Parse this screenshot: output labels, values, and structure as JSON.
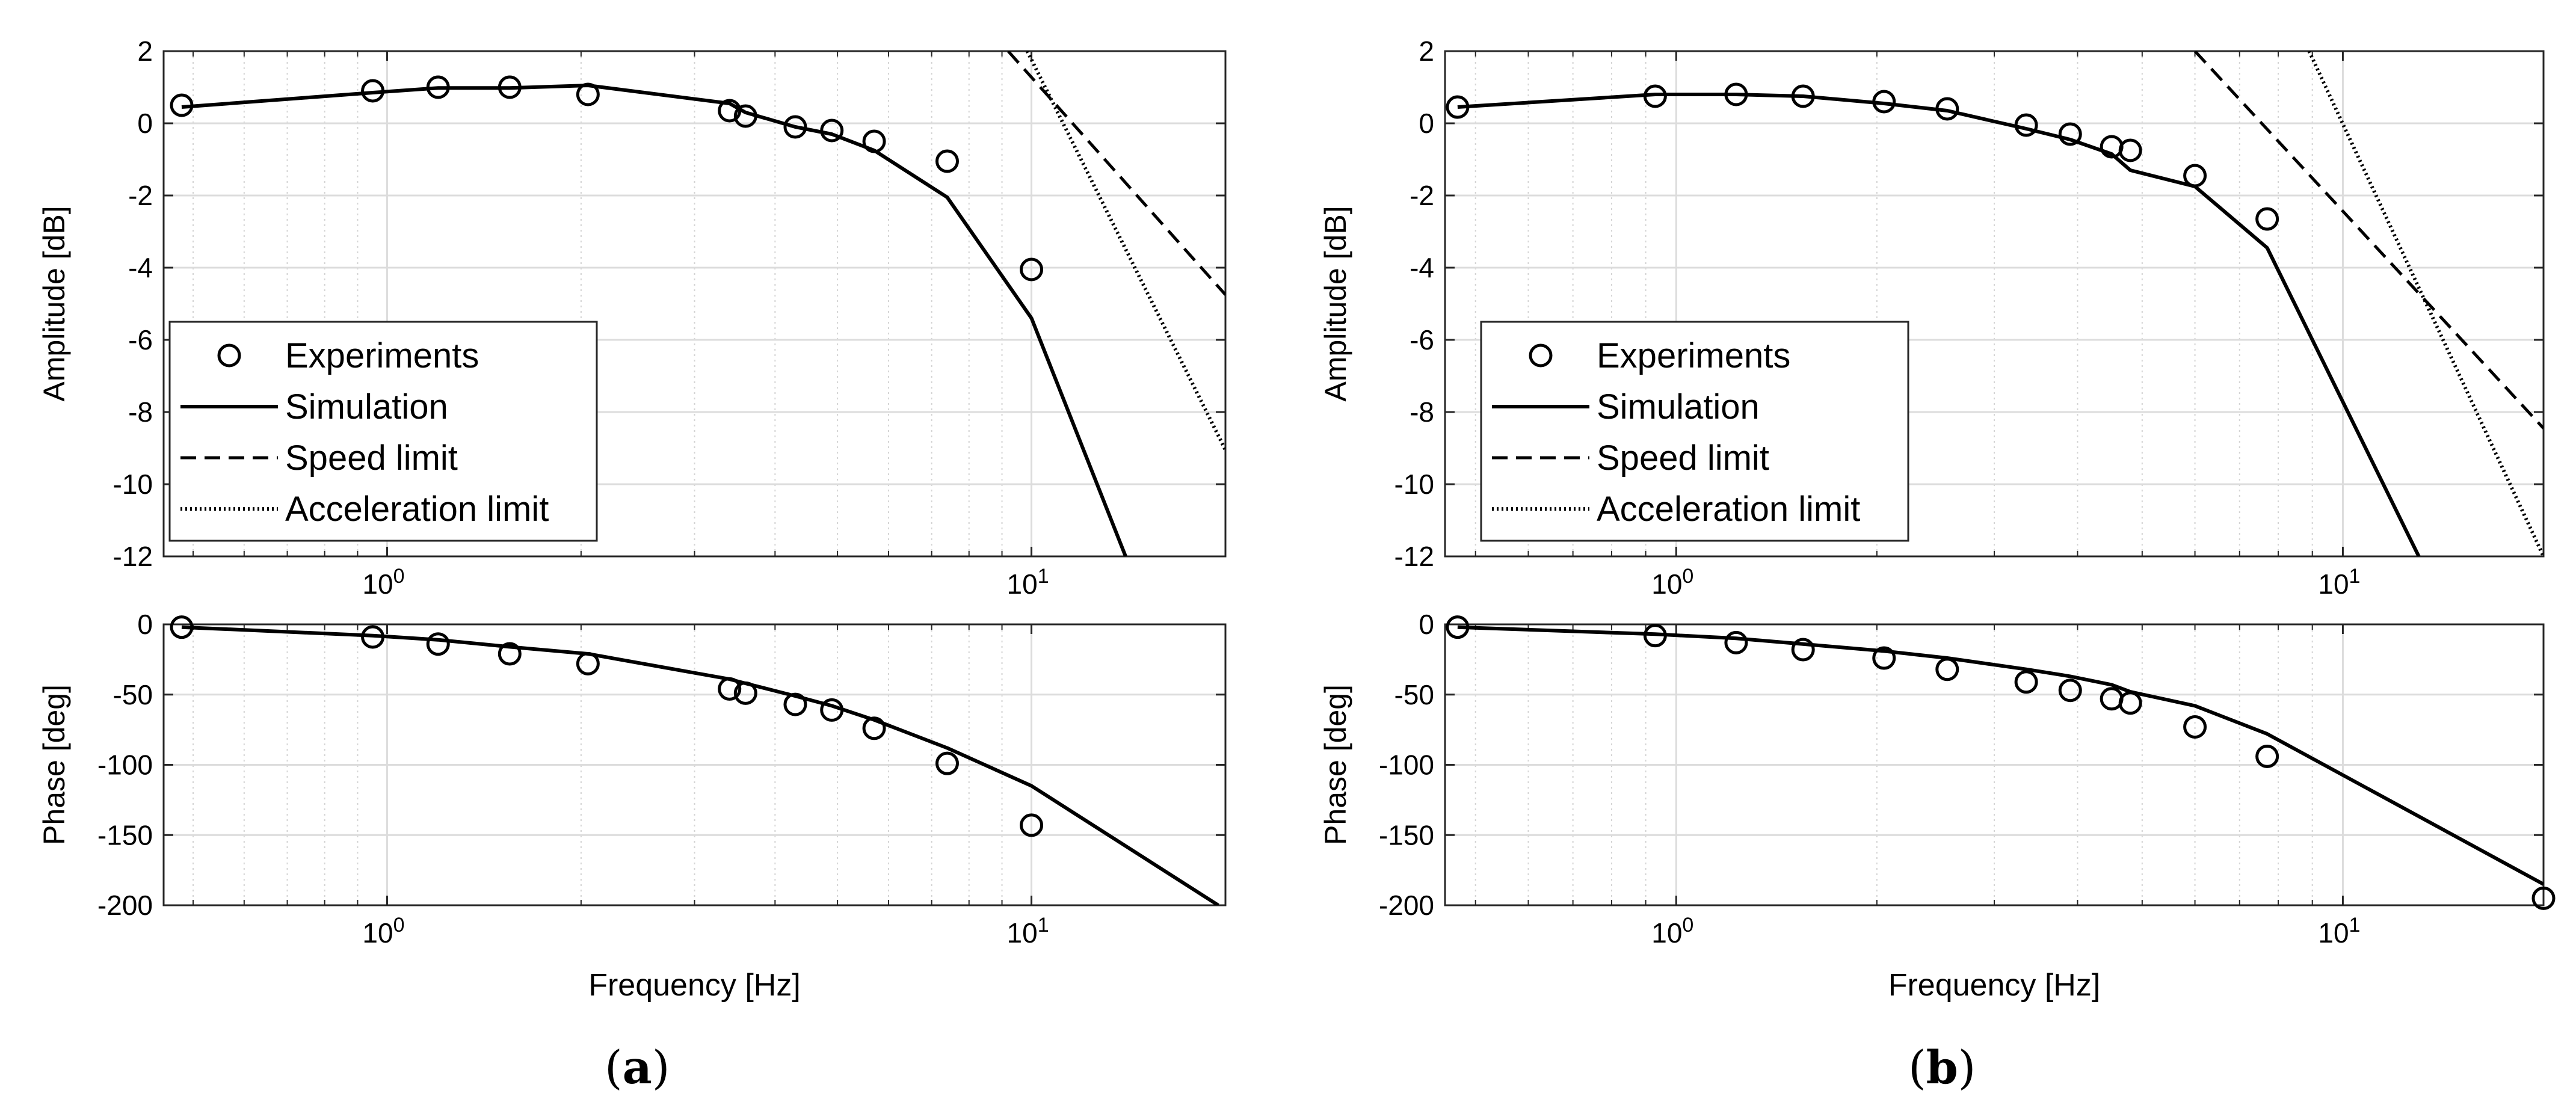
{
  "figure": {
    "captions": [
      {
        "open": "(",
        "letter": "a",
        "close": ")"
      },
      {
        "open": "(",
        "letter": "b",
        "close": ")"
      }
    ]
  },
  "chart_data": [
    {
      "type": "line",
      "panel": "a-amplitude",
      "title": "",
      "xlabel": "",
      "ylabel": "Amplitude [dB]",
      "xscale": "log",
      "xlim": [
        0.45,
        20
      ],
      "ylim": [
        -12,
        2
      ],
      "yticks": [
        2,
        0,
        -2,
        -4,
        -6,
        -8,
        -10,
        -12
      ],
      "xticks": [
        {
          "value": 1,
          "base": "10",
          "exp": "0"
        },
        {
          "value": 10,
          "base": "10",
          "exp": "1"
        }
      ],
      "grid": true,
      "legend_position": "bottom-left",
      "series": [
        {
          "name": "Experiments",
          "style": "markers",
          "x": [
            0.48,
            0.95,
            1.2,
            1.55,
            2.05,
            3.4,
            3.6,
            4.3,
            4.9,
            5.7,
            7.4,
            10.0
          ],
          "y": [
            0.5,
            0.9,
            1.0,
            1.0,
            0.8,
            0.35,
            0.2,
            -0.1,
            -0.2,
            -0.5,
            -1.05,
            -4.05
          ]
        },
        {
          "name": "Simulation",
          "style": "solid",
          "x": [
            0.48,
            0.95,
            1.2,
            1.55,
            2.05,
            3.4,
            3.6,
            4.3,
            4.9,
            5.7,
            7.4,
            10.0,
            14.0
          ],
          "y": [
            0.45,
            0.85,
            0.98,
            0.98,
            1.05,
            0.55,
            0.3,
            -0.1,
            -0.3,
            -0.75,
            -2.05,
            -5.4,
            -12.0
          ]
        },
        {
          "name": "Speed limit",
          "style": "dashed",
          "x": [
            9.2,
            20.0
          ],
          "y": [
            2.0,
            -4.75
          ]
        },
        {
          "name": "Acceleration limit",
          "style": "dotted",
          "x": [
            9.85,
            20.0
          ],
          "y": [
            2.0,
            -9.05
          ]
        }
      ]
    },
    {
      "type": "line",
      "panel": "a-phase",
      "title": "",
      "xlabel": "Frequency [Hz]",
      "ylabel": "Phase [deg]",
      "xscale": "log",
      "xlim": [
        0.45,
        20
      ],
      "ylim": [
        -200,
        0
      ],
      "yticks": [
        0,
        -50,
        -100,
        -150,
        -200
      ],
      "xticks": [
        {
          "value": 1,
          "base": "10",
          "exp": "0"
        },
        {
          "value": 10,
          "base": "10",
          "exp": "1"
        }
      ],
      "grid": true,
      "series": [
        {
          "name": "Experiments",
          "style": "markers",
          "x": [
            0.48,
            0.95,
            1.2,
            1.55,
            2.05,
            3.4,
            3.6,
            4.3,
            4.9,
            5.7,
            7.4,
            10.0
          ],
          "y": [
            -2,
            -9,
            -14,
            -21,
            -28,
            -46,
            -49,
            -57,
            -61,
            -74,
            -99,
            -143
          ]
        },
        {
          "name": "Simulation",
          "style": "solid",
          "x": [
            0.48,
            0.95,
            1.2,
            1.55,
            2.05,
            3.4,
            3.6,
            4.3,
            4.9,
            5.7,
            7.4,
            10.0,
            19.5
          ],
          "y": [
            -2,
            -8,
            -11,
            -16,
            -21,
            -39,
            -42,
            -51,
            -58,
            -68,
            -88,
            -115,
            -200
          ]
        }
      ]
    },
    {
      "type": "line",
      "panel": "b-amplitude",
      "title": "",
      "xlabel": "",
      "ylabel": "Amplitude [dB]",
      "xscale": "log",
      "xlim": [
        0.45,
        20
      ],
      "ylim": [
        -12,
        2
      ],
      "yticks": [
        2,
        0,
        -2,
        -4,
        -6,
        -8,
        -10,
        -12
      ],
      "xticks": [
        {
          "value": 1,
          "base": "10",
          "exp": "0"
        },
        {
          "value": 10,
          "base": "10",
          "exp": "1"
        }
      ],
      "grid": true,
      "legend_position": "bottom-left",
      "series": [
        {
          "name": "Experiments",
          "style": "markers",
          "x": [
            0.47,
            0.93,
            1.23,
            1.55,
            2.05,
            2.55,
            3.35,
            3.9,
            4.5,
            4.8,
            6.0,
            7.7
          ],
          "y": [
            0.45,
            0.75,
            0.8,
            0.75,
            0.6,
            0.4,
            -0.05,
            -0.3,
            -0.65,
            -0.75,
            -1.45,
            -2.65
          ]
        },
        {
          "name": "Simulation",
          "style": "solid",
          "x": [
            0.47,
            0.93,
            1.23,
            1.55,
            2.05,
            2.55,
            3.35,
            3.9,
            4.5,
            4.8,
            6.0,
            7.7,
            13.0
          ],
          "y": [
            0.45,
            0.8,
            0.8,
            0.75,
            0.55,
            0.35,
            -0.15,
            -0.45,
            -0.85,
            -1.3,
            -1.75,
            -3.45,
            -12.0
          ]
        },
        {
          "name": "Speed limit",
          "style": "dashed",
          "x": [
            6.0,
            20.0
          ],
          "y": [
            2.0,
            -8.45
          ]
        },
        {
          "name": "Acceleration limit",
          "style": "dotted",
          "x": [
            8.9,
            20.0
          ],
          "y": [
            2.0,
            -12.0
          ]
        }
      ]
    },
    {
      "type": "line",
      "panel": "b-phase",
      "title": "",
      "xlabel": "Frequency [Hz]",
      "ylabel": "Phase [deg]",
      "xscale": "log",
      "xlim": [
        0.45,
        20
      ],
      "ylim": [
        -200,
        0
      ],
      "yticks": [
        0,
        -50,
        -100,
        -150,
        -200
      ],
      "xticks": [
        {
          "value": 1,
          "base": "10",
          "exp": "0"
        },
        {
          "value": 10,
          "base": "10",
          "exp": "1"
        }
      ],
      "grid": true,
      "series": [
        {
          "name": "Experiments",
          "style": "markers",
          "x": [
            0.47,
            0.93,
            1.23,
            1.55,
            2.05,
            2.55,
            3.35,
            3.9,
            4.5,
            4.8,
            6.0,
            7.7,
            20.0
          ],
          "y": [
            -2,
            -8,
            -13,
            -18,
            -24,
            -32,
            -41,
            -47,
            -53,
            -56,
            -73,
            -94,
            -195
          ]
        },
        {
          "name": "Simulation",
          "style": "solid",
          "x": [
            0.47,
            0.93,
            1.23,
            1.55,
            2.05,
            2.55,
            3.35,
            3.9,
            4.5,
            4.8,
            6.0,
            7.7,
            20.0
          ],
          "y": [
            -2,
            -7,
            -10,
            -14,
            -19,
            -24,
            -32,
            -37,
            -43,
            -48,
            -58,
            -78,
            -185
          ]
        }
      ]
    }
  ]
}
